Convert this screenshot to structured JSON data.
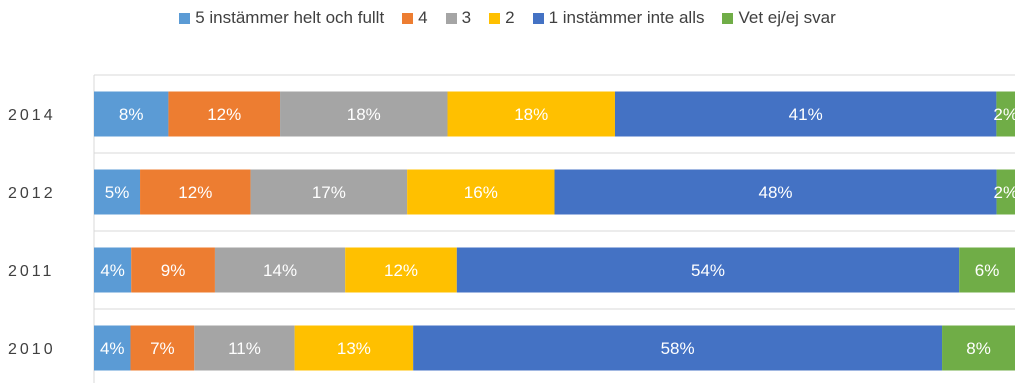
{
  "chart_data": {
    "type": "bar",
    "orientation": "horizontal",
    "stacked": true,
    "categories": [
      "2014",
      "2012",
      "2011",
      "2010"
    ],
    "series": [
      {
        "name": "5 instämmer helt och fullt",
        "color": "#5B9BD5",
        "values": [
          8,
          5,
          4,
          4
        ],
        "labels": [
          "8%",
          "5%",
          "4%",
          "4%"
        ]
      },
      {
        "name": "4",
        "color": "#ED7D31",
        "values": [
          12,
          12,
          9,
          7
        ],
        "labels": [
          "12%",
          "12%",
          "9%",
          "7%"
        ]
      },
      {
        "name": "3",
        "color": "#A5A5A5",
        "values": [
          18,
          17,
          14,
          11
        ],
        "labels": [
          "18%",
          "17%",
          "14%",
          "11%"
        ]
      },
      {
        "name": "2",
        "color": "#FFC000",
        "values": [
          18,
          16,
          12,
          13
        ],
        "labels": [
          "18%",
          "16%",
          "12%",
          "13%"
        ]
      },
      {
        "name": "1 instämmer inte alls",
        "color": "#4472C4",
        "values": [
          41,
          48,
          54,
          58
        ],
        "labels": [
          "41%",
          "48%",
          "54%",
          "58%"
        ]
      },
      {
        "name": "Vet ej/ej svar",
        "color": "#70AD47",
        "values": [
          2,
          2,
          6,
          8
        ],
        "labels": [
          "2%",
          "2%",
          "6%",
          "8%"
        ]
      }
    ],
    "title": "",
    "xlabel": "",
    "ylabel": "",
    "grid": true,
    "legend_position": "top"
  }
}
